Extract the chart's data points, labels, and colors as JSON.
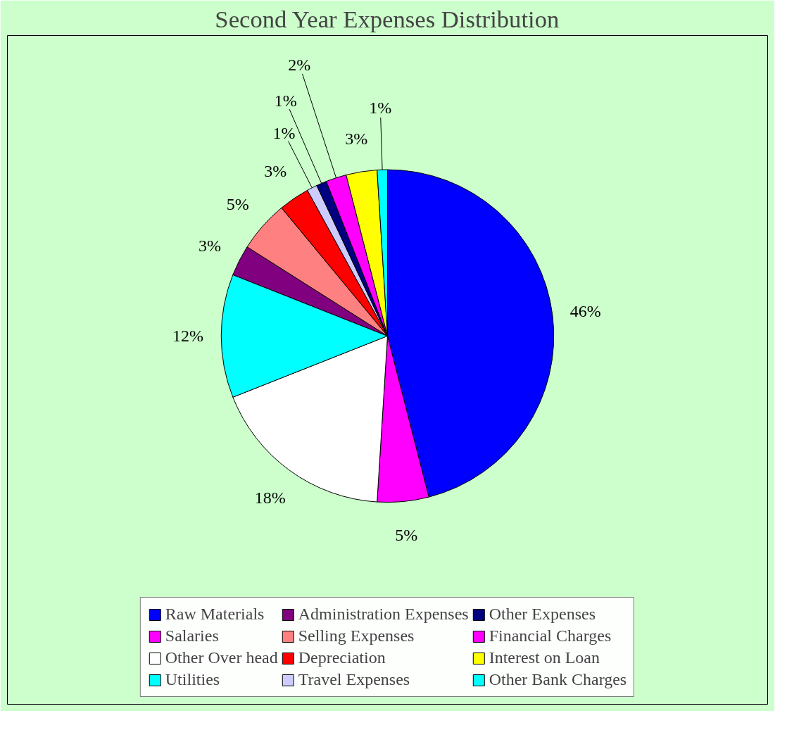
{
  "chart_data": {
    "type": "pie",
    "title": "Second Year Expenses Distribution",
    "categories": [
      "Raw Materials",
      "Salaries",
      "Other Over head",
      "Utilities",
      "Administration Expenses",
      "Selling Expenses",
      "Depreciation",
      "Travel Expenses",
      "Other Expenses",
      "Financial Charges",
      "Interest on Loan",
      "Other Bank Charges"
    ],
    "values": [
      46,
      5,
      18,
      12,
      3,
      5,
      3,
      1,
      1,
      2,
      3,
      1
    ],
    "colors": [
      "#0000ff",
      "#ff00ff",
      "#ffffff",
      "#00ffff",
      "#800080",
      "#ff8080",
      "#ff0000",
      "#ccccff",
      "#000080",
      "#ff00ff",
      "#ffff00",
      "#00ffff"
    ],
    "value_labels": [
      "46%",
      "5%",
      "18%",
      "12%",
      "3%",
      "5%",
      "3%",
      "1%",
      "1%",
      "2%",
      "3%",
      "1%"
    ],
    "legend": "bottom"
  }
}
